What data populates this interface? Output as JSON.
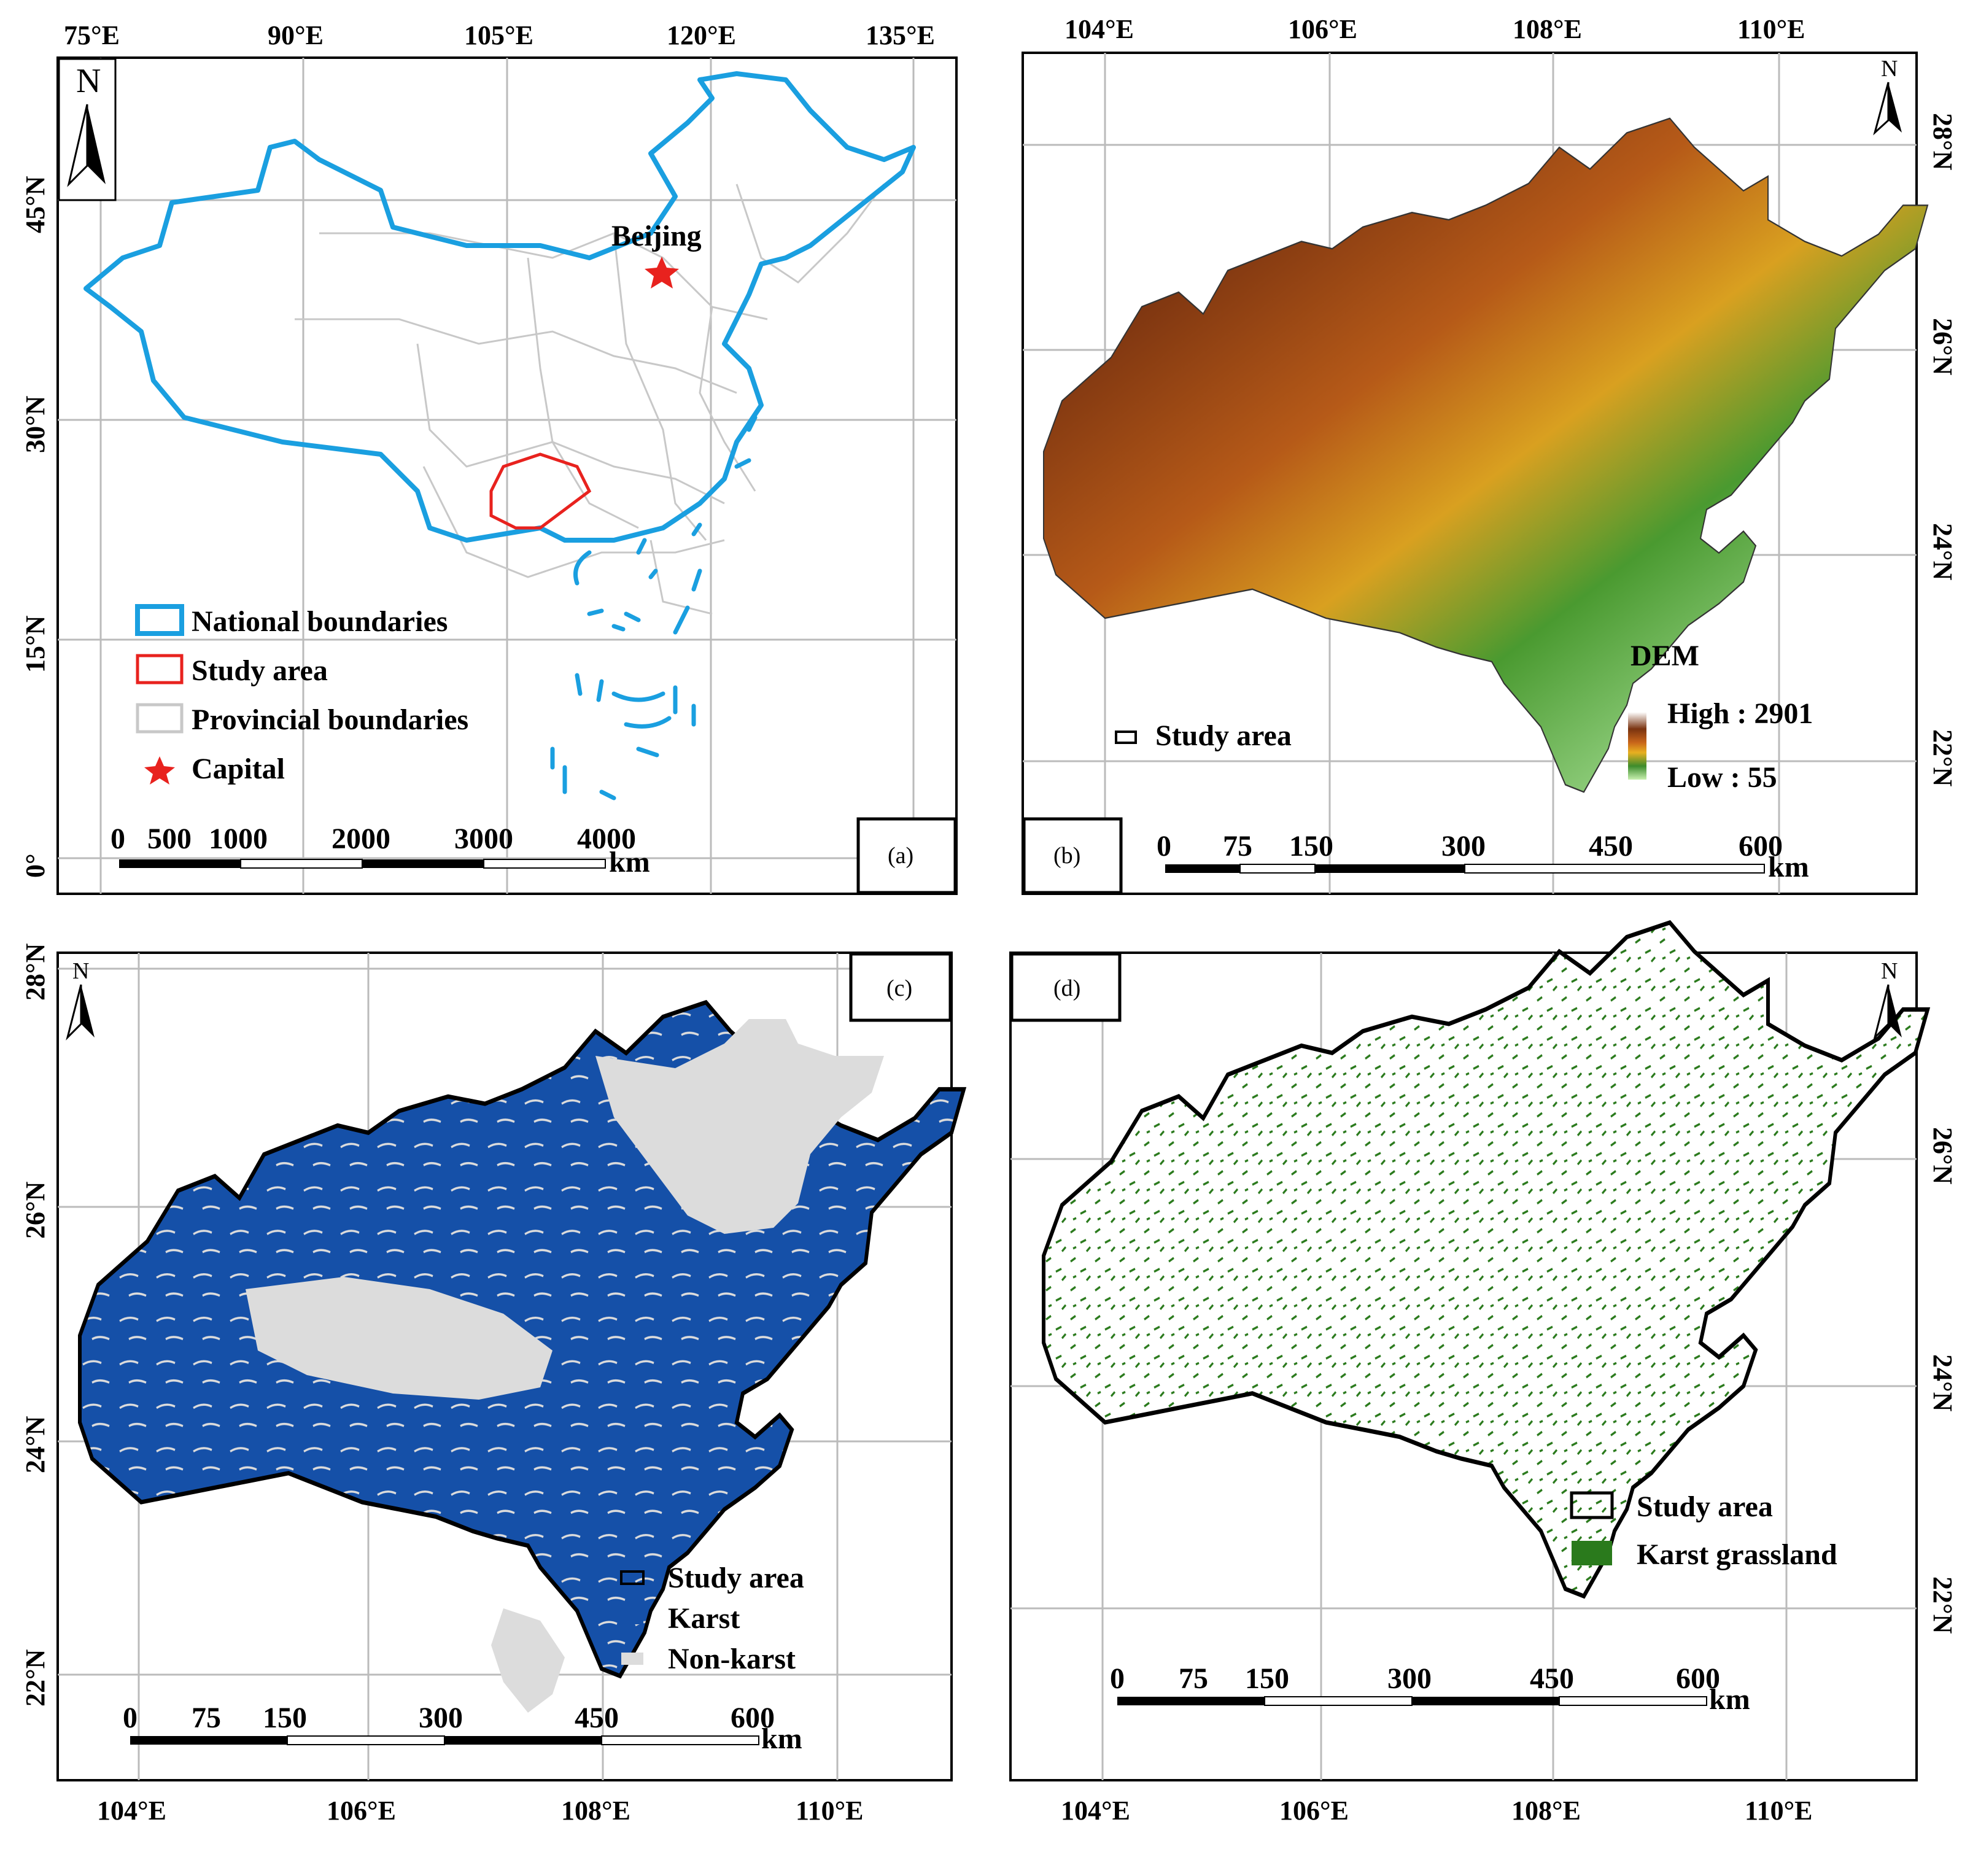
{
  "panel_a": {
    "label": "(a)",
    "top_ticks": [
      "75°E",
      "90°E",
      "105°E",
      "120°E",
      "135°E"
    ],
    "left_ticks": [
      "45°N",
      "30°N",
      "15°N",
      "0°"
    ],
    "north": "N",
    "beijing_label": "Beijing",
    "legend": {
      "national": "National boundaries",
      "study": "Study area",
      "provincial": "Provincial boundaries",
      "capital": "Capital"
    },
    "scale_labels": [
      "0",
      "500",
      "1000",
      "2000",
      "3000",
      "4000"
    ],
    "scale_unit": "km",
    "colors": {
      "national": "#1a9fe0",
      "study": "#e8221e",
      "provincial": "#c8c8c8",
      "capital": "#e8221e"
    }
  },
  "panel_b": {
    "label": "(b)",
    "top_ticks": [
      "104°E",
      "106°E",
      "108°E",
      "110°E"
    ],
    "right_ticks": [
      "28°N",
      "26°N",
      "24°N",
      "22°N"
    ],
    "north": "N",
    "dem_title": "DEM",
    "dem_high": "High : 2901",
    "dem_low": "Low : 55",
    "study_legend": "Study area",
    "scale_labels": [
      "0",
      "75",
      "150",
      "300",
      "450",
      "600"
    ],
    "scale_unit": "km",
    "ramp_colors": [
      "#ffffff",
      "#7a3310",
      "#c8651a",
      "#e8b020",
      "#3d8c2c",
      "#c9f0b0"
    ]
  },
  "panel_c": {
    "label": "(c)",
    "left_ticks": [
      "28°N",
      "26°N",
      "24°N",
      "22°N"
    ],
    "bottom_ticks": [
      "104°E",
      "106°E",
      "108°E",
      "110°E"
    ],
    "north": "N",
    "legend": {
      "study": "Study area",
      "karst": "Karst",
      "nonkarst": "Non-karst"
    },
    "scale_labels": [
      "0",
      "75",
      "150",
      "300",
      "450",
      "600"
    ],
    "scale_unit": "km",
    "colors": {
      "karst": "#1550a8",
      "nonkarst": "#dcdcdc"
    }
  },
  "panel_d": {
    "label": "(d)",
    "right_ticks": [
      "26°N",
      "24°N",
      "22°N"
    ],
    "bottom_ticks": [
      "104°E",
      "106°E",
      "108°E",
      "110°E"
    ],
    "north": "N",
    "legend": {
      "study": "Study area",
      "grass": "Karst grassland"
    },
    "scale_labels": [
      "0",
      "75",
      "150",
      "300",
      "450",
      "600"
    ],
    "scale_unit": "km",
    "colors": {
      "grass": "#2a7a1c"
    }
  }
}
